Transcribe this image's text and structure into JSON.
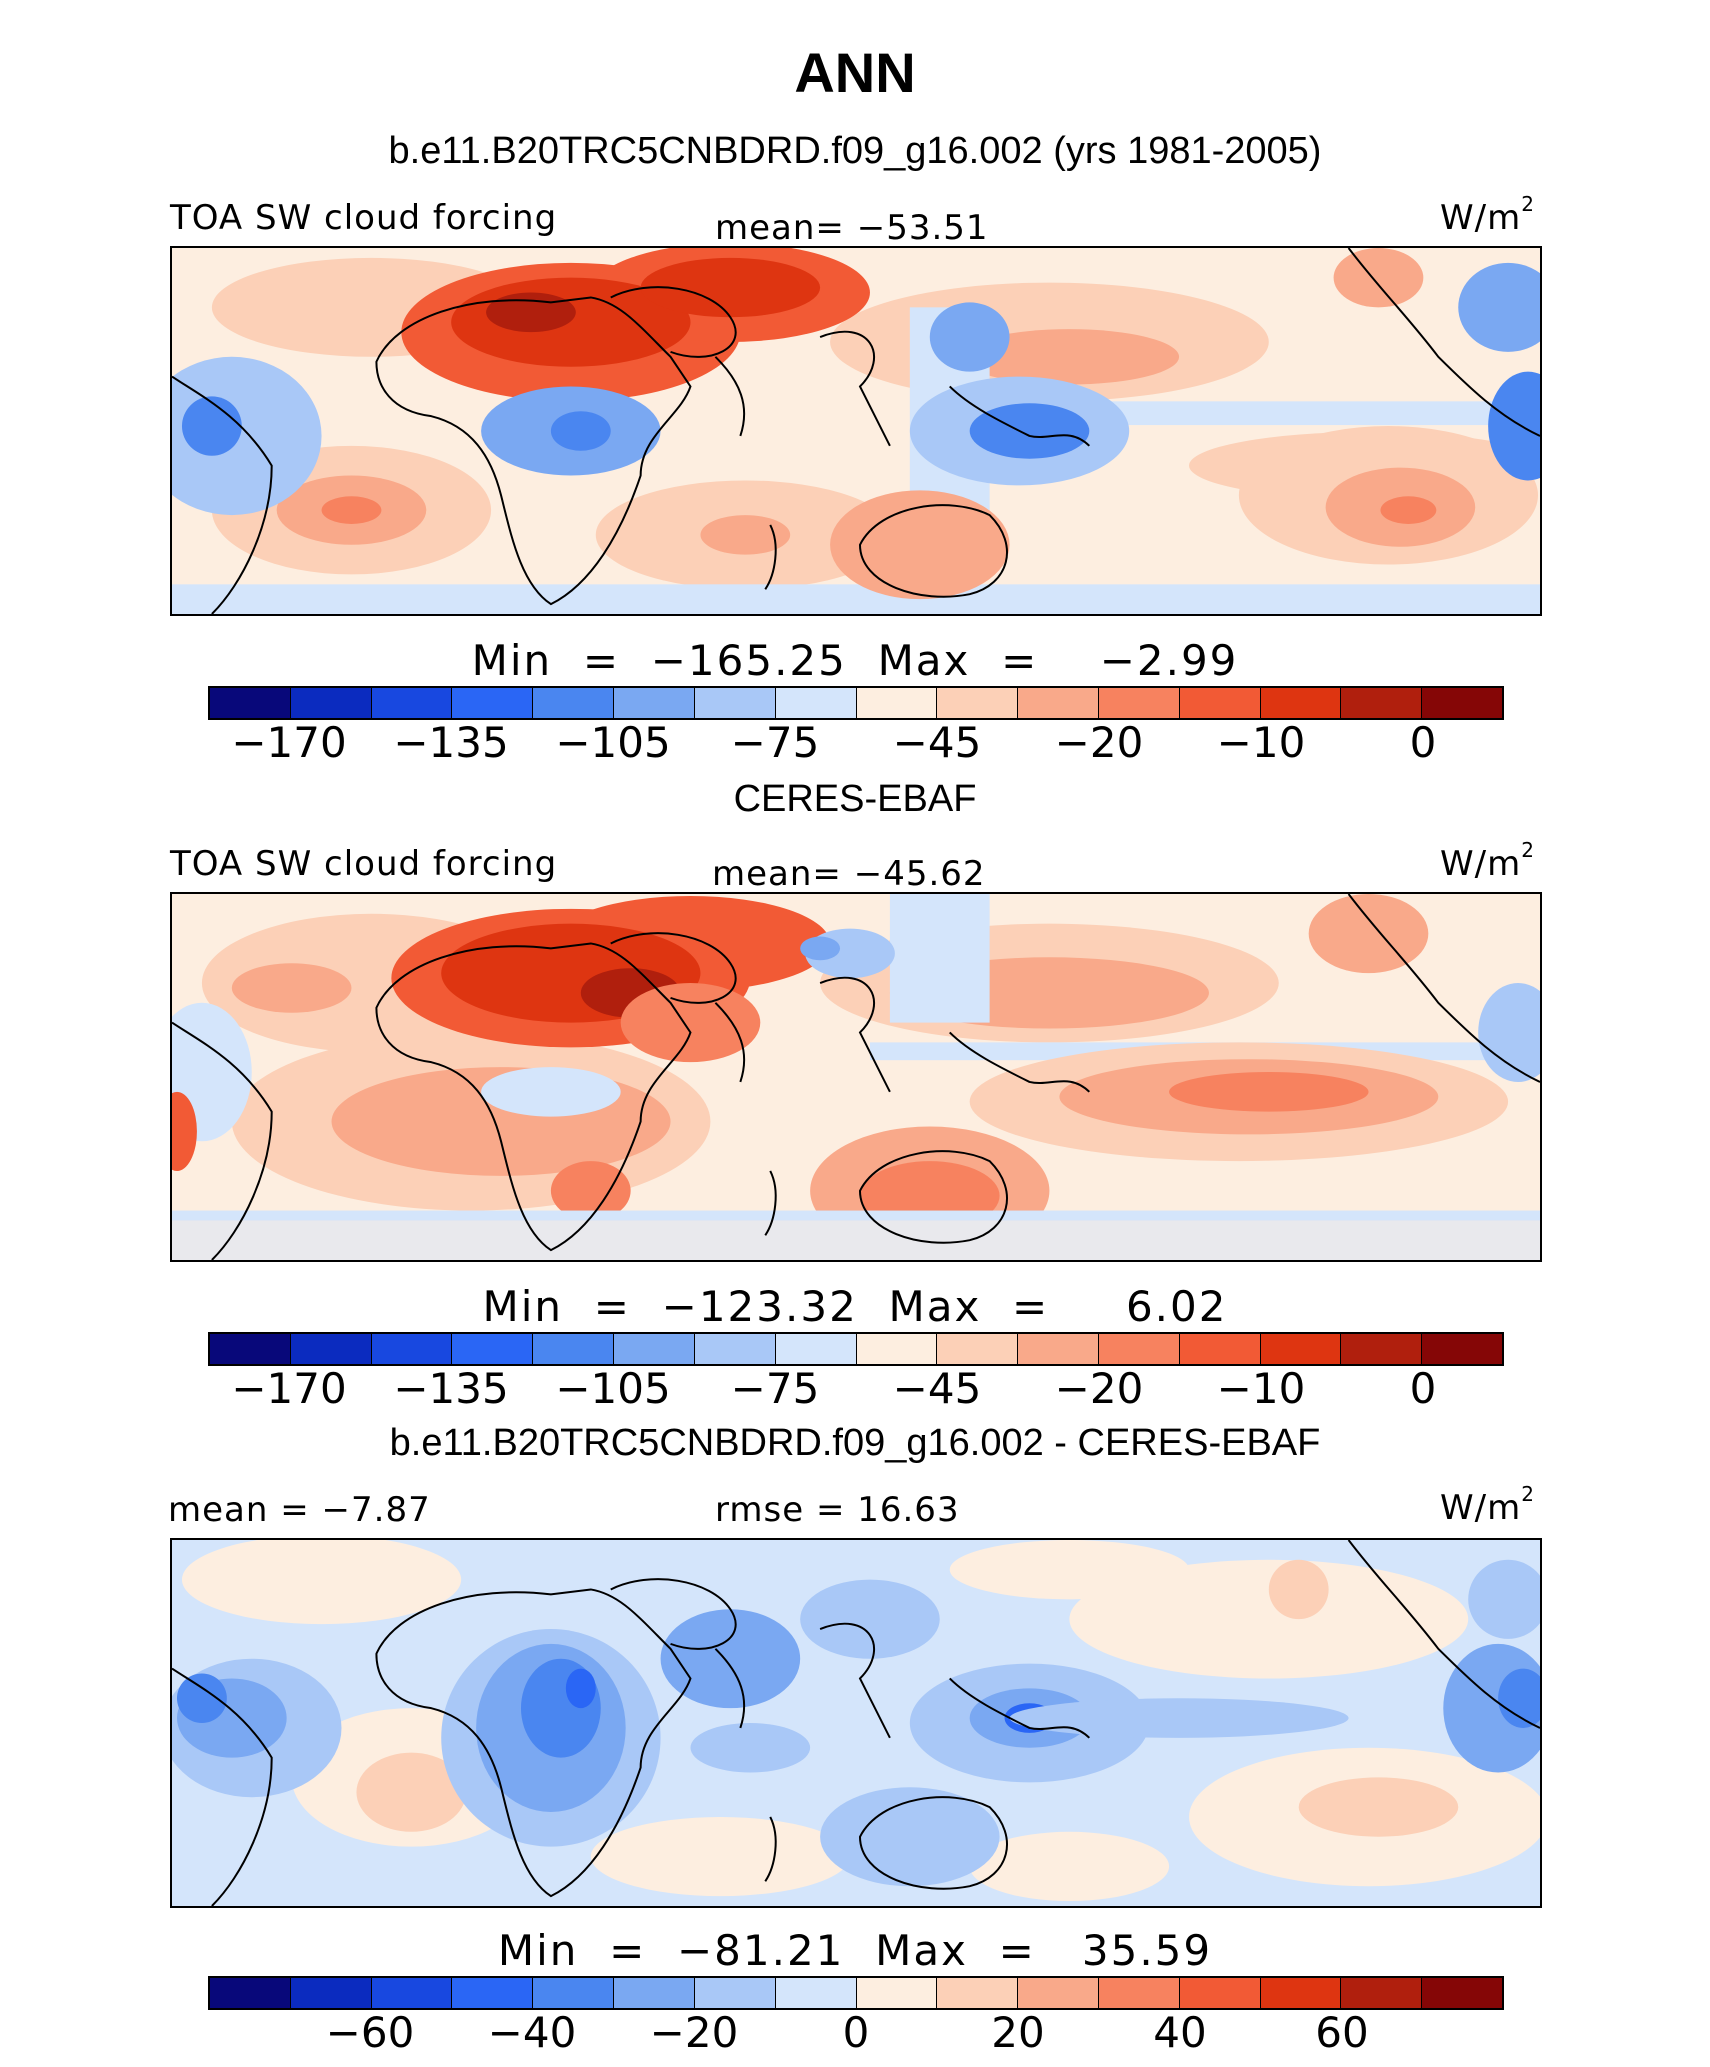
{
  "main_title": "ANN",
  "palette": [
    "#08087a",
    "#0b2bbf",
    "#1848e0",
    "#2a66f5",
    "#4a86f0",
    "#7aa8f2",
    "#a9c8f7",
    "#d4e5fb",
    "#fdeee0",
    "#fcd0b7",
    "#f9a98a",
    "#f7825f",
    "#f25a35",
    "#de3511",
    "#b01f0d",
    "#850606"
  ],
  "land_color": "#000000",
  "panels": [
    {
      "title": "b.e11.B20TRC5CNBDRD.f09_g16.002 (yrs 1981-2005)",
      "left_label": "TOA SW cloud forcing",
      "center_label": "mean=  −53.51",
      "units": "W/m",
      "units_sup": "2",
      "minmax": "Min  =  −165.25  Max  =    −2.99",
      "ticks": [
        "−170",
        "−135",
        "−105",
        "−75",
        "−45",
        "−20",
        "−10",
        "0"
      ]
    },
    {
      "title": "CERES-EBAF",
      "left_label": "TOA SW cloud forcing",
      "center_label": "mean=  −45.62",
      "units": "W/m",
      "units_sup": "2",
      "minmax": "Min  =  −123.32  Max  =     6.02",
      "ticks": [
        "−170",
        "−135",
        "−105",
        "−75",
        "−45",
        "−20",
        "−10",
        "0"
      ]
    },
    {
      "title": "b.e11.B20TRC5CNBDRD.f09_g16.002 - CERES-EBAF",
      "left_label": "mean  =   −7.87",
      "center_label": "rmse  =   16.63",
      "units": "W/m",
      "units_sup": "2",
      "minmax": "Min  =  −81.21  Max  =   35.59",
      "ticks": [
        "−60",
        "−40",
        "−20",
        "0",
        "20",
        "40",
        "60"
      ]
    }
  ]
}
